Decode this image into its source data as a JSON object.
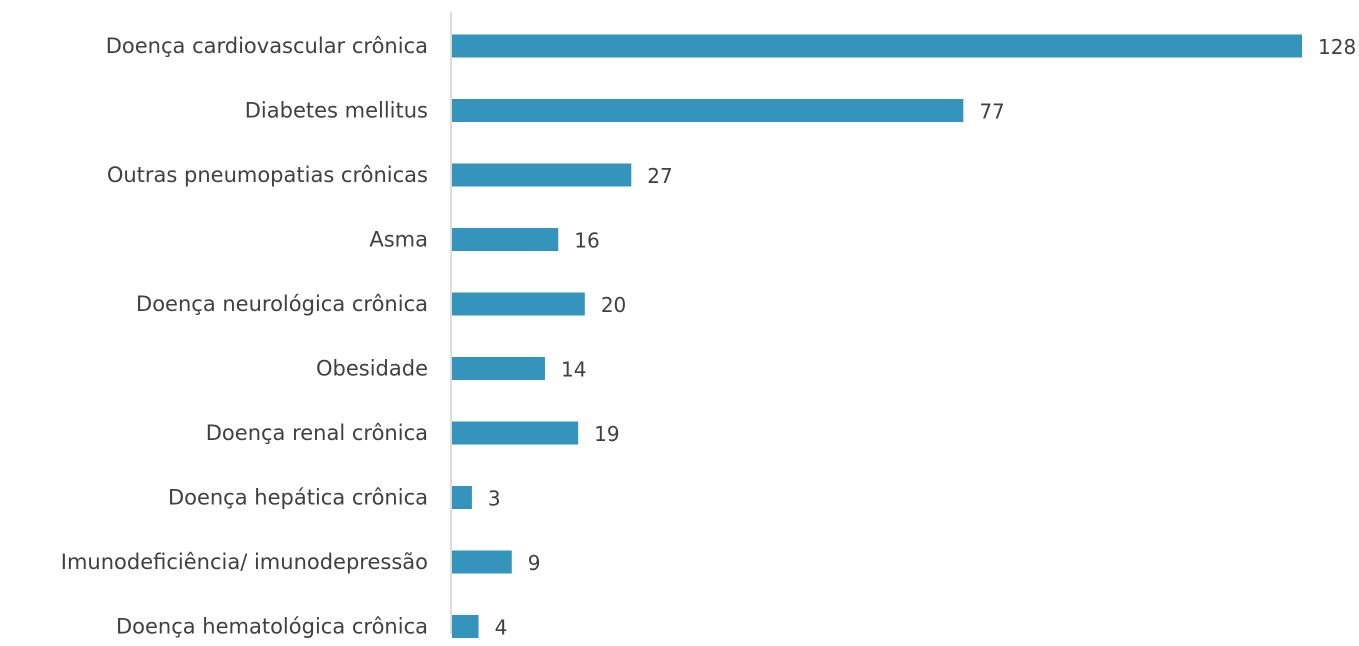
{
  "chart_data": {
    "type": "bar",
    "orientation": "horizontal",
    "categories": [
      "Doença cardiovascular crônica",
      "Diabetes mellitus",
      "Outras pneumopatias crônicas",
      "Asma",
      "Doença neurológica crônica",
      "Obesidade",
      "Doença renal crônica",
      "Doença hepática crônica",
      "Imunodeficiência/ imunodepressão",
      "Doença hematológica crônica"
    ],
    "values": [
      128,
      77,
      27,
      16,
      20,
      14,
      19,
      3,
      9,
      4
    ],
    "xlim": [
      0,
      128
    ],
    "grid": false,
    "legend": "none",
    "colors": {
      "bar": "#3594bb",
      "axis": "#d0d0d0",
      "text": "#404040"
    }
  }
}
